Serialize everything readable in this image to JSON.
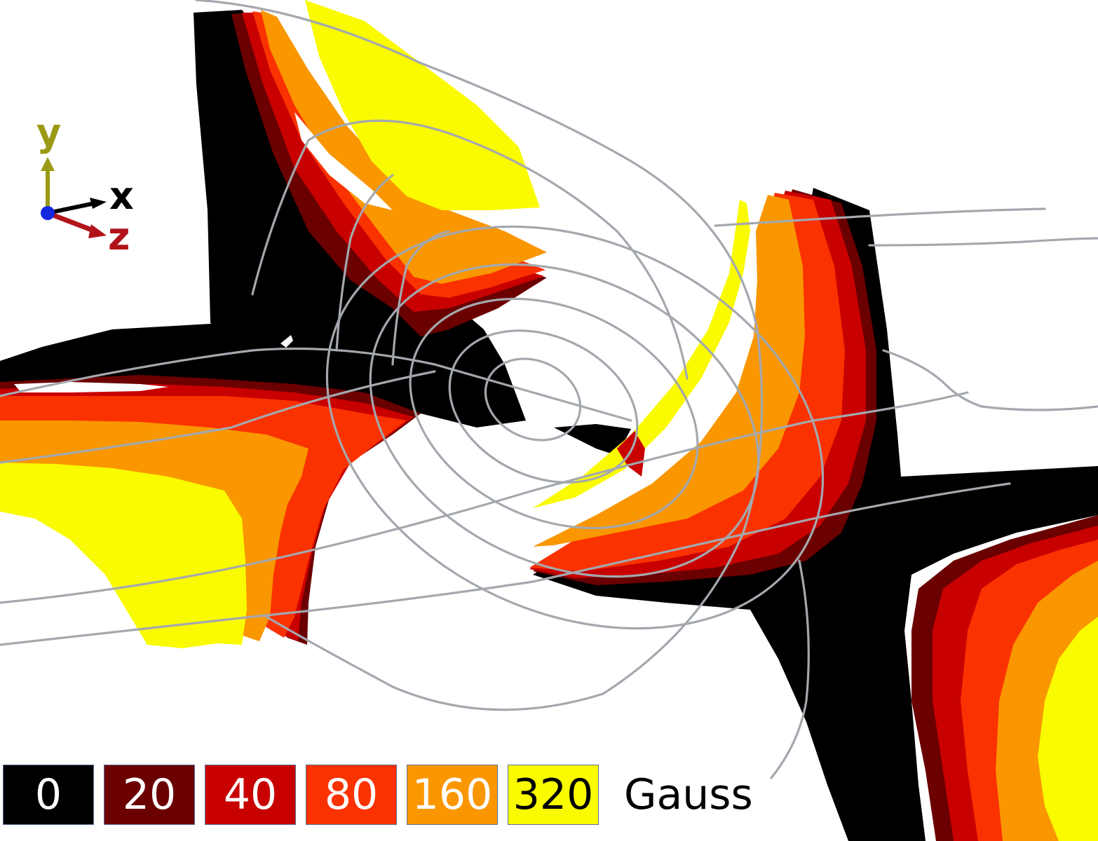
{
  "axes_triad": {
    "y_label": "y",
    "x_label": "x",
    "z_label": "z",
    "colors": {
      "y": "#9a9a14",
      "x": "#000000",
      "z": "#b0141a",
      "origin": "#1428e0"
    }
  },
  "legend": {
    "levels": [
      {
        "label": "0",
        "color": "#000000",
        "text_color": "#ffffff"
      },
      {
        "label": "20",
        "color": "#6b0000",
        "text_color": "#ffffff"
      },
      {
        "label": "40",
        "color": "#c80000",
        "text_color": "#ffffff"
      },
      {
        "label": "80",
        "color": "#fa3200",
        "text_color": "#ffffff"
      },
      {
        "label": "160",
        "color": "#f99600",
        "text_color": "#ffffff"
      },
      {
        "label": "320",
        "color": "#fafa00",
        "text_color": "#000000"
      }
    ],
    "unit": "Gauss"
  },
  "field_line_color": "#a4a8ae"
}
